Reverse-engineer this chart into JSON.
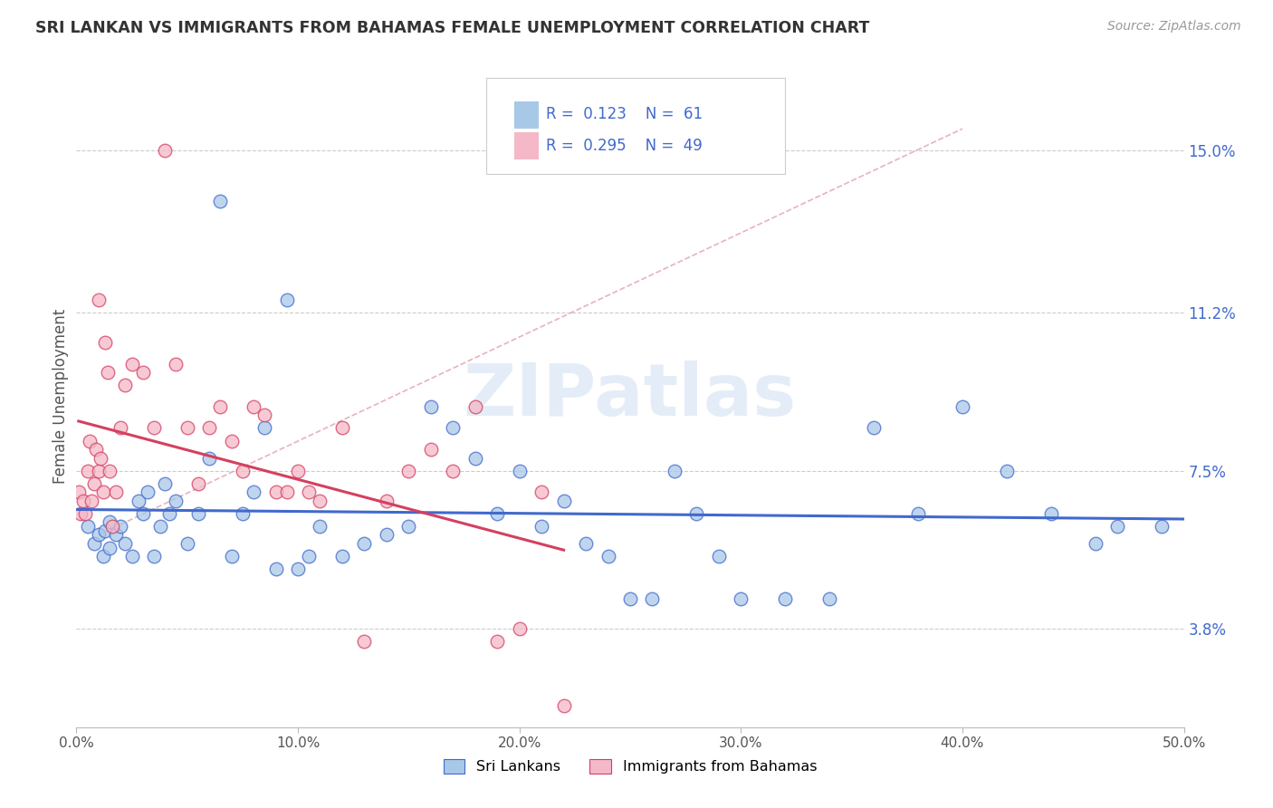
{
  "title": "SRI LANKAN VS IMMIGRANTS FROM BAHAMAS FEMALE UNEMPLOYMENT CORRELATION CHART",
  "source": "Source: ZipAtlas.com",
  "ylabel": "Female Unemployment",
  "ytick_values": [
    3.8,
    7.5,
    11.2,
    15.0
  ],
  "xlim": [
    0.0,
    50.0
  ],
  "ylim": [
    1.5,
    17.0
  ],
  "legend_label1": "Sri Lankans",
  "legend_label2": "Immigrants from Bahamas",
  "r1": "0.123",
  "n1": "61",
  "r2": "0.295",
  "n2": "49",
  "color1": "#a8c8e8",
  "color2": "#f4b8c8",
  "line1_color": "#4169cd",
  "line2_color": "#d44060",
  "dash_color": "#e0a0b0",
  "background_color": "#ffffff",
  "watermark": "ZIPatlas",
  "sri_lanka_x": [
    0.5,
    0.8,
    1.0,
    1.2,
    1.3,
    1.5,
    1.5,
    1.8,
    2.0,
    2.2,
    2.5,
    2.8,
    3.0,
    3.2,
    3.5,
    3.8,
    4.0,
    4.2,
    4.5,
    5.0,
    5.5,
    6.0,
    6.5,
    7.0,
    7.5,
    8.0,
    8.5,
    9.0,
    9.5,
    10.0,
    10.5,
    11.0,
    12.0,
    13.0,
    14.0,
    15.0,
    16.0,
    17.0,
    18.0,
    19.0,
    20.0,
    21.0,
    22.0,
    23.0,
    24.0,
    25.0,
    26.0,
    27.0,
    28.0,
    29.0,
    30.0,
    32.0,
    34.0,
    36.0,
    38.0,
    40.0,
    42.0,
    44.0,
    46.0,
    47.0,
    49.0
  ],
  "sri_lanka_y": [
    6.2,
    5.8,
    6.0,
    5.5,
    6.1,
    6.3,
    5.7,
    6.0,
    6.2,
    5.8,
    5.5,
    6.8,
    6.5,
    7.0,
    5.5,
    6.2,
    7.2,
    6.5,
    6.8,
    5.8,
    6.5,
    7.8,
    13.8,
    5.5,
    6.5,
    7.0,
    8.5,
    5.2,
    11.5,
    5.2,
    5.5,
    6.2,
    5.5,
    5.8,
    6.0,
    6.2,
    9.0,
    8.5,
    7.8,
    6.5,
    7.5,
    6.2,
    6.8,
    5.8,
    5.5,
    4.5,
    4.5,
    7.5,
    6.5,
    5.5,
    4.5,
    4.5,
    4.5,
    8.5,
    6.5,
    9.0,
    7.5,
    6.5,
    5.8,
    6.2,
    6.2
  ],
  "bahamas_x": [
    0.1,
    0.2,
    0.3,
    0.4,
    0.5,
    0.6,
    0.7,
    0.8,
    0.9,
    1.0,
    1.1,
    1.2,
    1.3,
    1.4,
    1.5,
    1.6,
    1.8,
    2.0,
    2.2,
    2.5,
    3.0,
    3.5,
    4.0,
    4.5,
    5.0,
    5.5,
    6.0,
    6.5,
    7.0,
    7.5,
    8.0,
    8.5,
    9.0,
    9.5,
    10.0,
    10.5,
    11.0,
    12.0,
    13.0,
    14.0,
    15.0,
    16.0,
    17.0,
    18.0,
    19.0,
    20.0,
    21.0,
    22.0,
    1.0
  ],
  "bahamas_y": [
    7.0,
    6.5,
    6.8,
    6.5,
    7.5,
    8.2,
    6.8,
    7.2,
    8.0,
    7.5,
    7.8,
    7.0,
    10.5,
    9.8,
    7.5,
    6.2,
    7.0,
    8.5,
    9.5,
    10.0,
    9.8,
    8.5,
    15.0,
    10.0,
    8.5,
    7.2,
    8.5,
    9.0,
    8.2,
    7.5,
    9.0,
    8.8,
    7.0,
    7.0,
    7.5,
    7.0,
    6.8,
    8.5,
    3.5,
    6.8,
    7.5,
    8.0,
    7.5,
    9.0,
    3.5,
    3.8,
    7.0,
    2.0,
    11.5
  ]
}
